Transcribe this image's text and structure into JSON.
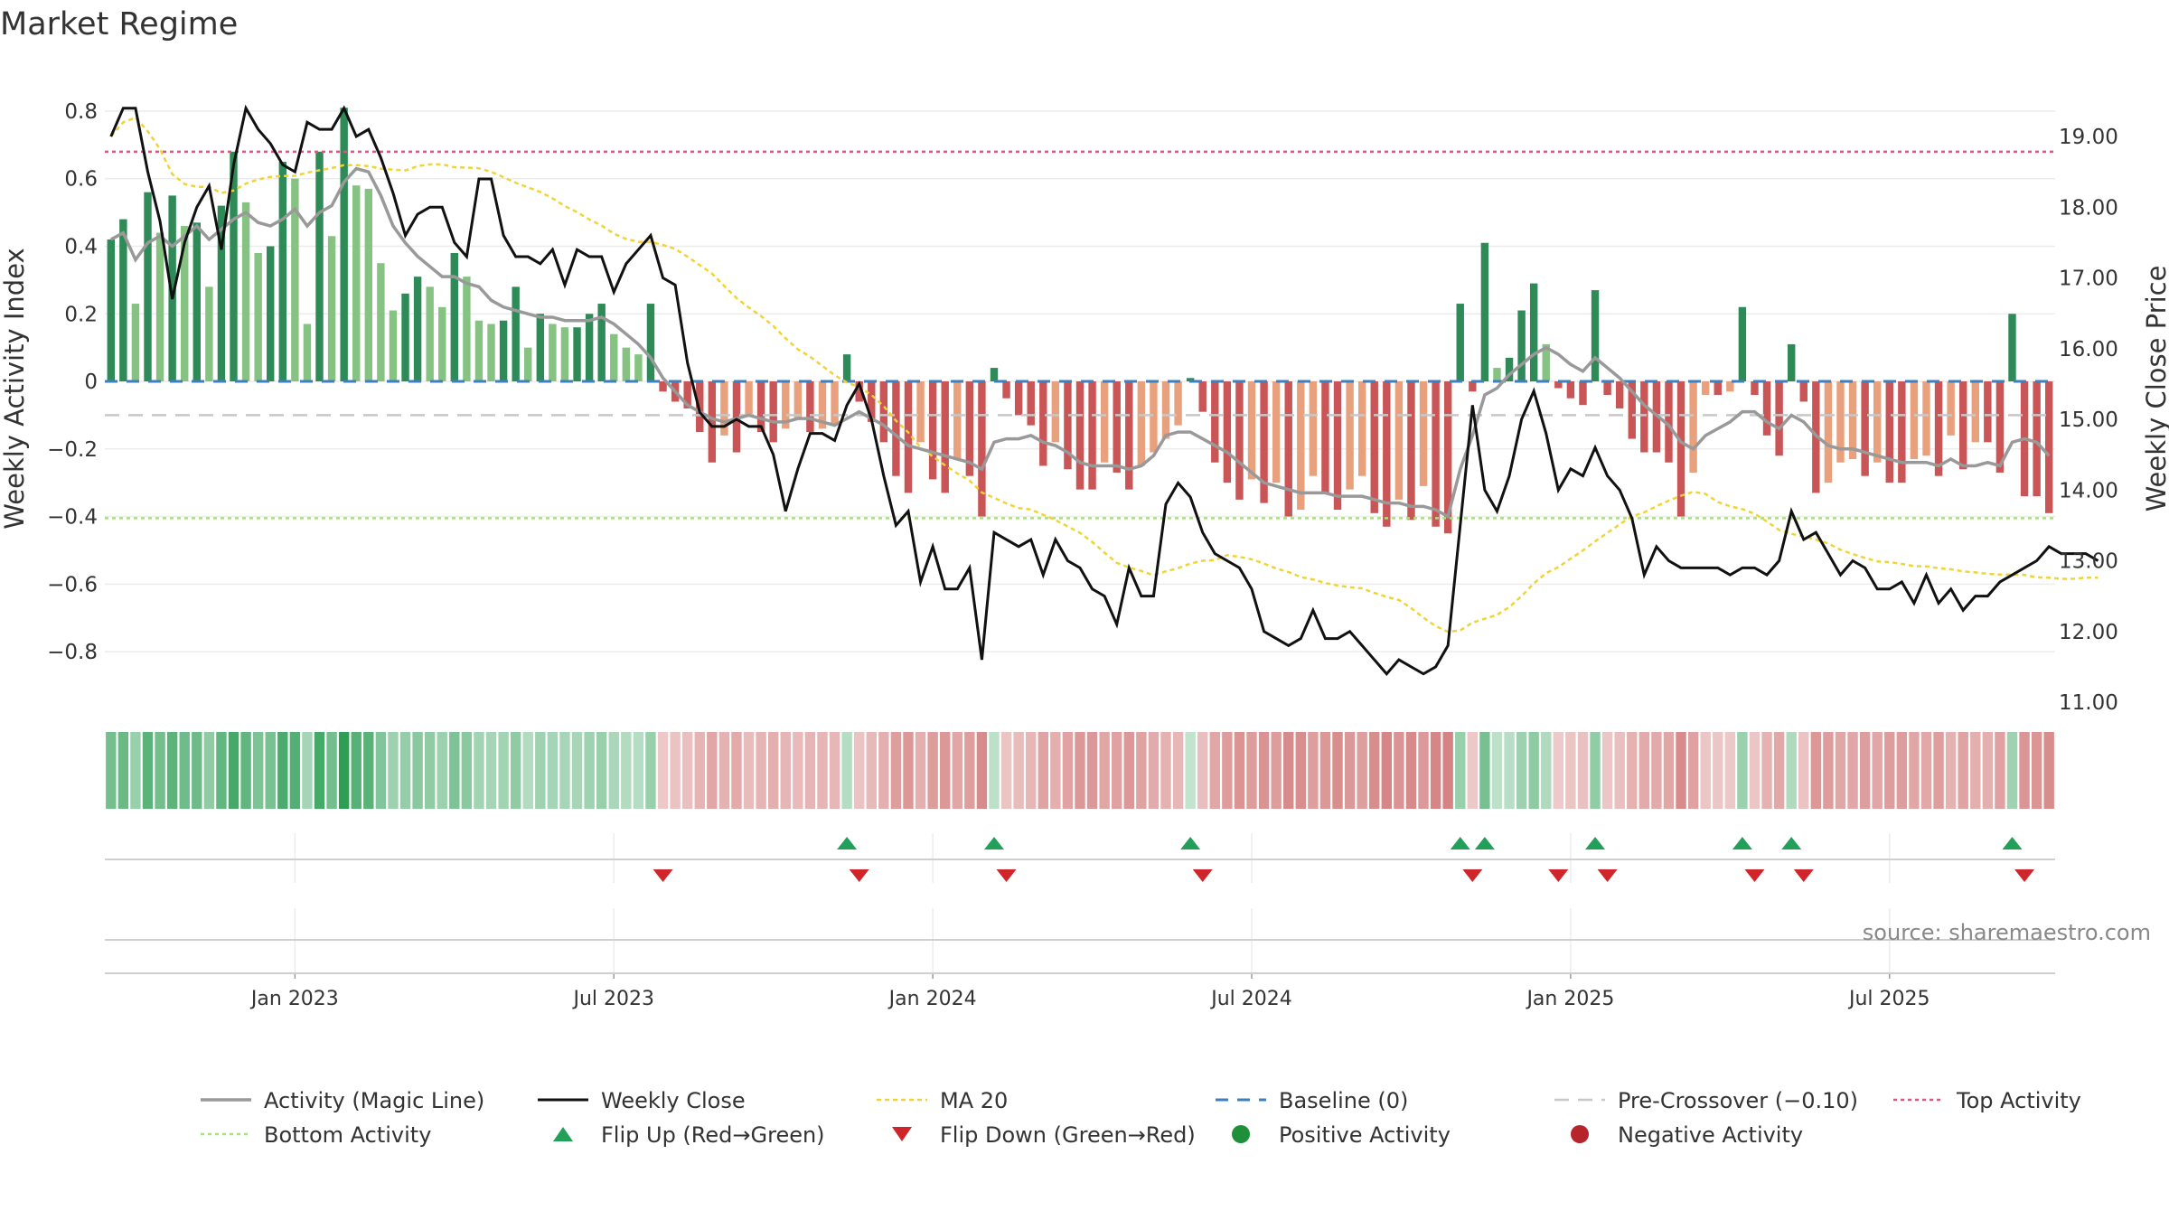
{
  "chart_data": {
    "type": "bar",
    "title": "Market Regime",
    "ylabel_left": "Weekly Activity Index",
    "ylabel_right": "Weekly Close Price",
    "source": "source: sharemaestro.com",
    "left_axis": {
      "ylim": [
        -0.88,
        0.84
      ],
      "ticks": [
        -0.8,
        -0.6,
        -0.4,
        -0.2,
        0,
        0.2,
        0.4,
        0.6,
        0.8
      ],
      "tick_labels": [
        "−0.8",
        "−0.6",
        "−0.4",
        "−0.2",
        "0",
        "0.2",
        "0.4",
        "0.6",
        "0.8"
      ]
    },
    "right_axis": {
      "ylim": [
        11.0,
        19.5
      ],
      "ticks": [
        11,
        12,
        13,
        14,
        15,
        16,
        17,
        18,
        19
      ],
      "tick_labels": [
        "11.00",
        "12.00",
        "13.00",
        "14.00",
        "15.00",
        "16.00",
        "17.00",
        "18.00",
        "19.00"
      ]
    },
    "x_axis": {
      "tick_labels": [
        "Jan 2023",
        "Jul 2023",
        "Jan 2024",
        "Jul 2024",
        "Jan 2025",
        "Jul 2025"
      ],
      "tick_weeks": [
        15,
        41,
        67,
        93,
        119,
        145
      ]
    },
    "reference_lines": {
      "baseline": 0,
      "pre_crossover": -0.1,
      "top_activity": 0.68,
      "bottom_activity": -0.405
    },
    "activity_bars": [
      0.42,
      0.48,
      0.23,
      0.56,
      0.44,
      0.55,
      0.46,
      0.47,
      0.28,
      0.52,
      0.68,
      0.53,
      0.38,
      0.4,
      0.65,
      0.6,
      0.17,
      0.68,
      0.43,
      0.81,
      0.58,
      0.57,
      0.35,
      0.21,
      0.26,
      0.31,
      0.28,
      0.22,
      0.38,
      0.31,
      0.18,
      0.17,
      0.18,
      0.28,
      0.1,
      0.2,
      0.17,
      0.16,
      0.16,
      0.2,
      0.23,
      0.14,
      0.1,
      0.08,
      0.23,
      -0.03,
      -0.06,
      -0.08,
      -0.15,
      -0.24,
      -0.16,
      -0.21,
      -0.1,
      -0.15,
      -0.18,
      -0.14,
      -0.11,
      -0.15,
      -0.14,
      -0.13,
      0.08,
      -0.06,
      -0.12,
      -0.18,
      -0.28,
      -0.33,
      -0.18,
      -0.29,
      -0.33,
      -0.23,
      -0.28,
      -0.4,
      0.04,
      -0.05,
      -0.1,
      -0.13,
      -0.25,
      -0.18,
      -0.26,
      -0.32,
      -0.32,
      -0.24,
      -0.27,
      -0.32,
      -0.25,
      -0.21,
      -0.17,
      -0.13,
      0.01,
      -0.09,
      -0.24,
      -0.3,
      -0.35,
      -0.29,
      -0.36,
      -0.3,
      -0.4,
      -0.38,
      -0.28,
      -0.33,
      -0.38,
      -0.32,
      -0.28,
      -0.39,
      -0.43,
      -0.35,
      -0.41,
      -0.31,
      -0.43,
      -0.45,
      0.23,
      -0.03,
      0.41,
      0.04,
      0.07,
      0.21,
      0.29,
      0.11,
      -0.02,
      -0.05,
      -0.07,
      0.27,
      -0.04,
      -0.08,
      -0.17,
      -0.21,
      -0.21,
      -0.24,
      -0.4,
      -0.27,
      -0.04,
      -0.04,
      -0.03,
      0.22,
      -0.04,
      -0.16,
      -0.22,
      0.11,
      -0.06,
      -0.33,
      -0.3,
      -0.24,
      -0.23,
      -0.28,
      -0.24,
      -0.3,
      -0.3,
      -0.23,
      -0.22,
      -0.28,
      -0.16,
      -0.26,
      -0.18,
      -0.18,
      -0.27,
      0.2,
      -0.34,
      -0.34,
      -0.39
    ],
    "magic_line": [
      0.42,
      0.44,
      0.36,
      0.41,
      0.43,
      0.4,
      0.43,
      0.46,
      0.42,
      0.45,
      0.48,
      0.5,
      0.47,
      0.46,
      0.48,
      0.51,
      0.46,
      0.5,
      0.52,
      0.59,
      0.63,
      0.62,
      0.55,
      0.46,
      0.41,
      0.37,
      0.34,
      0.31,
      0.31,
      0.29,
      0.28,
      0.24,
      0.22,
      0.21,
      0.2,
      0.19,
      0.19,
      0.18,
      0.18,
      0.18,
      0.19,
      0.17,
      0.14,
      0.11,
      0.07,
      0.01,
      -0.03,
      -0.07,
      -0.09,
      -0.11,
      -0.12,
      -0.11,
      -0.1,
      -0.11,
      -0.12,
      -0.12,
      -0.11,
      -0.11,
      -0.12,
      -0.13,
      -0.11,
      -0.09,
      -0.11,
      -0.13,
      -0.16,
      -0.19,
      -0.2,
      -0.21,
      -0.22,
      -0.23,
      -0.24,
      -0.26,
      -0.18,
      -0.17,
      -0.17,
      -0.16,
      -0.18,
      -0.19,
      -0.21,
      -0.24,
      -0.25,
      -0.25,
      -0.25,
      -0.26,
      -0.25,
      -0.22,
      -0.16,
      -0.15,
      -0.15,
      -0.17,
      -0.19,
      -0.21,
      -0.24,
      -0.27,
      -0.3,
      -0.31,
      -0.32,
      -0.33,
      -0.33,
      -0.33,
      -0.34,
      -0.34,
      -0.34,
      -0.35,
      -0.36,
      -0.36,
      -0.37,
      -0.37,
      -0.38,
      -0.4,
      -0.26,
      -0.16,
      -0.04,
      -0.02,
      0.02,
      0.05,
      0.08,
      0.1,
      0.08,
      0.05,
      0.03,
      0.07,
      0.04,
      0.01,
      -0.03,
      -0.07,
      -0.1,
      -0.13,
      -0.18,
      -0.2,
      -0.16,
      -0.14,
      -0.12,
      -0.09,
      -0.09,
      -0.12,
      -0.14,
      -0.1,
      -0.12,
      -0.16,
      -0.19,
      -0.2,
      -0.2,
      -0.21,
      -0.22,
      -0.23,
      -0.24,
      -0.24,
      -0.24,
      -0.25,
      -0.23,
      -0.25,
      -0.25,
      -0.24,
      -0.25,
      -0.18,
      -0.17,
      -0.18,
      -0.22
    ],
    "weekly_close": [
      19.0,
      19.4,
      19.4,
      18.5,
      17.8,
      16.7,
      17.5,
      18.0,
      18.3,
      17.4,
      18.6,
      19.4,
      19.1,
      18.9,
      18.6,
      18.5,
      19.2,
      19.1,
      19.1,
      19.4,
      19.0,
      19.1,
      18.7,
      18.2,
      17.6,
      17.9,
      18.0,
      18.0,
      17.5,
      17.3,
      18.4,
      18.4,
      17.6,
      17.3,
      17.3,
      17.2,
      17.4,
      16.9,
      17.4,
      17.3,
      17.3,
      16.8,
      17.2,
      17.4,
      17.6,
      17.0,
      16.9,
      15.8,
      15.1,
      14.9,
      14.9,
      15.0,
      14.9,
      14.9,
      14.5,
      13.7,
      14.3,
      14.8,
      14.8,
      14.7,
      15.2,
      15.5,
      15.0,
      14.2,
      13.5,
      13.7,
      12.7,
      13.2,
      12.6,
      12.6,
      12.9,
      11.6,
      13.4,
      13.3,
      13.2,
      13.3,
      12.8,
      13.3,
      13.0,
      12.9,
      12.6,
      12.5,
      12.1,
      12.9,
      12.5,
      12.5,
      13.8,
      14.1,
      13.9,
      13.4,
      13.1,
      13.0,
      12.9,
      12.6,
      12.0,
      11.9,
      11.8,
      11.9,
      12.3,
      11.9,
      11.9,
      12.0,
      11.8,
      11.6,
      11.4,
      11.6,
      11.5,
      11.4,
      11.5,
      11.8,
      13.5,
      15.2,
      14.0,
      13.7,
      14.2,
      15.0,
      15.4,
      14.8,
      14.0,
      14.3,
      14.2,
      14.6,
      14.2,
      14.0,
      13.6,
      12.8,
      13.2,
      13.0,
      12.9,
      12.9,
      12.9,
      12.9,
      12.8,
      12.9,
      12.9,
      12.8,
      13.0,
      13.7,
      13.3,
      13.4,
      13.1,
      12.8,
      13.0,
      12.9,
      12.6,
      12.6,
      12.7,
      12.4,
      12.8,
      12.4,
      12.6,
      12.3,
      12.5,
      12.5,
      12.7,
      12.8,
      12.9,
      13.0,
      13.2,
      13.1,
      13.1,
      13.1,
      13.0
    ]
  },
  "legend": {
    "items": [
      {
        "label": "Activity (Magic Line)"
      },
      {
        "label": "Weekly Close"
      },
      {
        "label": "MA 20"
      },
      {
        "label": "Baseline (0)"
      },
      {
        "label": "Pre-Crossover (−0.10)"
      },
      {
        "label": "Top Activity"
      },
      {
        "label": "Bottom Activity"
      },
      {
        "label": "Flip Up (Red→Green)"
      },
      {
        "label": "Flip Down (Green→Red)"
      },
      {
        "label": "Positive Activity"
      },
      {
        "label": "Negative Activity"
      }
    ]
  },
  "colors": {
    "pos_dark": "#2e8b57",
    "pos_light": "#86c383",
    "neg_dark": "#c95556",
    "neg_light": "#e9a07d",
    "magic_line": "#999999",
    "close_line": "#111111",
    "ma20": "#f0d436",
    "baseline": "#3f7fbf",
    "pre_crossover": "#c8c8c8",
    "top_activity": "#e05580",
    "bottom_activity": "#a8e07a",
    "flip_up": "#22a05a",
    "flip_down": "#d0262b",
    "positive_dot": "#1f8f3a",
    "negative_dot": "#b7242a"
  }
}
